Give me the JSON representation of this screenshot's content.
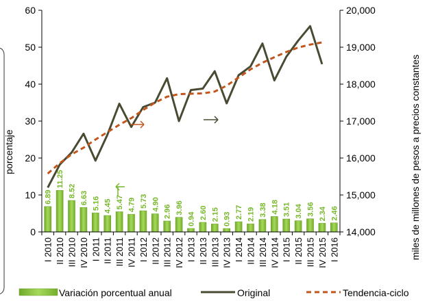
{
  "chart_data": {
    "type": "bar",
    "categories": [
      "I 2010",
      "II 2010",
      "III 2010",
      "IV 2010",
      "I 2011",
      "II 2011",
      "III 2011",
      "IV 2011",
      "I 2012",
      "II 2012",
      "III 2012",
      "IV 2012",
      "I 2013",
      "II 2013",
      "III 2013",
      "IV 2013",
      "I 2014",
      "II 2014",
      "III 2014",
      "IV 2014",
      "I 2015",
      "II 2015",
      "III 2015",
      "IV 2015",
      "I 2016"
    ],
    "ylabel": "porcentaje",
    "y2label": "miles de millones de pesos a precios constantes",
    "ylim": [
      0,
      60
    ],
    "y2lim": [
      14000,
      20000
    ],
    "yticks": [
      "0",
      "10",
      "20",
      "30",
      "40",
      "50",
      "60"
    ],
    "y2ticks": [
      "14,000",
      "15,000",
      "16,000",
      "17,000",
      "18,000",
      "19,000",
      "20,000"
    ],
    "legend_position": "bottom",
    "series": [
      {
        "name": "Variación porcentual anual",
        "kind": "bar",
        "axis": "left",
        "color": "#8cc63f",
        "values": [
          6.89,
          11.25,
          8.52,
          6.63,
          5.16,
          4.45,
          5.47,
          4.79,
          5.73,
          4.9,
          2.96,
          3.96,
          0.94,
          2.6,
          2.15,
          0.93,
          2.77,
          2.19,
          3.38,
          4.18,
          3.51,
          3.04,
          3.56,
          2.34,
          2.46
        ],
        "labels": [
          "6.89",
          "11.25",
          "8.52",
          "6.63",
          "5.16",
          "4.45",
          "5.47",
          "4.79",
          "5.73",
          "4.90",
          "2.96",
          "3.96",
          "0.94",
          "2.60",
          "2.15",
          "0.93",
          "2.77",
          "2.19",
          "3.38",
          "4.18",
          "3.51",
          "3.04",
          "3.56",
          "2.34",
          "2.46"
        ]
      },
      {
        "name": "Original",
        "kind": "line",
        "axis": "right",
        "color": "#4a4a33",
        "values": [
          15200,
          15820,
          16150,
          16660,
          15930,
          16630,
          17470,
          16840,
          17380,
          17500,
          18160,
          17000,
          17840,
          17880,
          18350,
          17480,
          18240,
          18480,
          19100,
          18100,
          18740,
          19180,
          19570,
          18540,
          null
        ]
      },
      {
        "name": "Tendencia-ciclo",
        "kind": "line",
        "axis": "right",
        "color": "#c0561c",
        "dashed": true,
        "values": [
          15580,
          15860,
          16100,
          16280,
          16500,
          16700,
          16900,
          17080,
          17300,
          17500,
          17660,
          17730,
          17740,
          17750,
          17800,
          17960,
          18180,
          18400,
          18580,
          18730,
          18870,
          18990,
          19070,
          19130,
          null
        ]
      }
    ]
  }
}
